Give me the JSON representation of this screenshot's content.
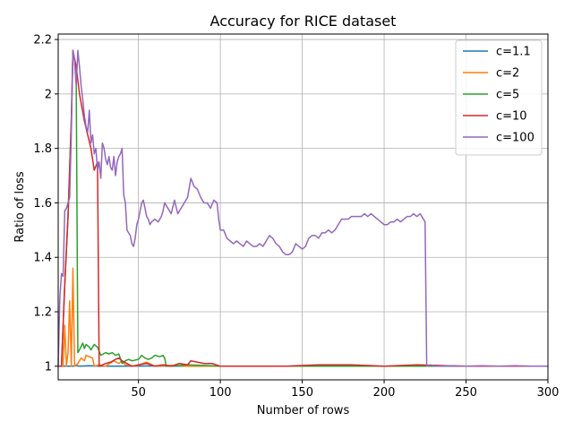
{
  "chart_data": {
    "type": "line",
    "title": "Accuracy for RICE dataset",
    "xlabel": "Number of rows",
    "ylabel": "Ratio of loss",
    "xlim": [
      1,
      300
    ],
    "ylim": [
      0.95,
      2.22
    ],
    "xticks": [
      50,
      100,
      150,
      200,
      250,
      300
    ],
    "yticks": [
      1.0,
      1.2,
      1.4,
      1.6,
      1.8,
      2.0,
      2.2
    ],
    "grid": true,
    "legend_position": "top-right",
    "series": [
      {
        "name": "c=1.1",
        "color": "#1f77b4",
        "points": [
          [
            1,
            1.0
          ],
          [
            10,
            1.0
          ],
          [
            12,
            1.003
          ],
          [
            14,
            1.0
          ],
          [
            20,
            1.002
          ],
          [
            26,
            1.0
          ],
          [
            40,
            1.0
          ],
          [
            60,
            1.001
          ],
          [
            80,
            1.0
          ],
          [
            100,
            1.0
          ],
          [
            150,
            1.0
          ],
          [
            200,
            1.0
          ],
          [
            250,
            1.0
          ],
          [
            300,
            1.0
          ]
        ]
      },
      {
        "name": "c=2",
        "color": "#ff7f0e",
        "points": [
          [
            1,
            1.0
          ],
          [
            4,
            1.0
          ],
          [
            5,
            1.15
          ],
          [
            6,
            1.0
          ],
          [
            7,
            1.05
          ],
          [
            8,
            1.24
          ],
          [
            9,
            1.0
          ],
          [
            10,
            1.36
          ],
          [
            11,
            1.0
          ],
          [
            13,
            1.01
          ],
          [
            15,
            1.03
          ],
          [
            17,
            1.02
          ],
          [
            18,
            1.04
          ],
          [
            20,
            1.035
          ],
          [
            22,
            1.03
          ],
          [
            23,
            1.0
          ],
          [
            26,
            1.005
          ],
          [
            30,
            1.0
          ],
          [
            35,
            1.02
          ],
          [
            38,
            1.01
          ],
          [
            40,
            1.02
          ],
          [
            42,
            1.005
          ],
          [
            48,
            1.0
          ],
          [
            55,
            1.015
          ],
          [
            60,
            1.0
          ],
          [
            70,
            1.003
          ],
          [
            80,
            1.0
          ],
          [
            100,
            1.0
          ],
          [
            150,
            1.0
          ],
          [
            200,
            1.0
          ],
          [
            250,
            1.0
          ],
          [
            300,
            1.0
          ]
        ]
      },
      {
        "name": "c=5",
        "color": "#2ca02c",
        "points": [
          [
            1,
            1.0
          ],
          [
            3,
            1.0
          ],
          [
            5,
            1.3
          ],
          [
            7,
            1.55
          ],
          [
            9,
            1.9
          ],
          [
            10,
            2.16
          ],
          [
            11,
            2.12
          ],
          [
            12,
            2.05
          ],
          [
            13,
            1.05
          ],
          [
            14,
            1.06
          ],
          [
            16,
            1.085
          ],
          [
            17,
            1.065
          ],
          [
            18,
            1.08
          ],
          [
            20,
            1.07
          ],
          [
            21,
            1.06
          ],
          [
            23,
            1.08
          ],
          [
            25,
            1.07
          ],
          [
            27,
            1.04
          ],
          [
            30,
            1.05
          ],
          [
            32,
            1.045
          ],
          [
            34,
            1.05
          ],
          [
            36,
            1.04
          ],
          [
            38,
            1.045
          ],
          [
            40,
            1.01
          ],
          [
            42,
            1.02
          ],
          [
            44,
            1.025
          ],
          [
            46,
            1.02
          ],
          [
            50,
            1.025
          ],
          [
            52,
            1.04
          ],
          [
            54,
            1.03
          ],
          [
            56,
            1.025
          ],
          [
            58,
            1.03
          ],
          [
            60,
            1.04
          ],
          [
            63,
            1.035
          ],
          [
            65,
            1.04
          ],
          [
            66,
            1.03
          ],
          [
            67,
            1.0
          ],
          [
            70,
            1.0
          ],
          [
            80,
            1.005
          ],
          [
            100,
            1.0
          ],
          [
            150,
            1.0
          ],
          [
            200,
            1.0
          ],
          [
            250,
            1.0
          ],
          [
            300,
            1.0
          ]
        ]
      },
      {
        "name": "c=10",
        "color": "#d62728",
        "points": [
          [
            1,
            1.0
          ],
          [
            3,
            1.0
          ],
          [
            5,
            1.3
          ],
          [
            7,
            1.55
          ],
          [
            9,
            1.9
          ],
          [
            10,
            2.16
          ],
          [
            12,
            2.1
          ],
          [
            14,
            2.0
          ],
          [
            17,
            1.9
          ],
          [
            19,
            1.85
          ],
          [
            21,
            1.8
          ],
          [
            23,
            1.72
          ],
          [
            25,
            1.75
          ],
          [
            26,
            1.0
          ],
          [
            30,
            1.01
          ],
          [
            33,
            1.015
          ],
          [
            36,
            1.025
          ],
          [
            38,
            1.03
          ],
          [
            40,
            1.02
          ],
          [
            43,
            1.01
          ],
          [
            46,
            1.0
          ],
          [
            50,
            1.005
          ],
          [
            55,
            1.01
          ],
          [
            60,
            1.0
          ],
          [
            65,
            1.005
          ],
          [
            70,
            1.0
          ],
          [
            75,
            1.01
          ],
          [
            80,
            1.005
          ],
          [
            82,
            1.02
          ],
          [
            86,
            1.015
          ],
          [
            90,
            1.01
          ],
          [
            95,
            1.01
          ],
          [
            100,
            1.0
          ],
          [
            120,
            1.0
          ],
          [
            140,
            1.0
          ],
          [
            160,
            1.005
          ],
          [
            180,
            1.005
          ],
          [
            200,
            1.0
          ],
          [
            220,
            1.005
          ],
          [
            250,
            1.0
          ],
          [
            300,
            1.0
          ]
        ]
      },
      {
        "name": "c=100",
        "color": "#9467bd",
        "points": [
          [
            1,
            1.0
          ],
          [
            2,
            1.25
          ],
          [
            3,
            1.34
          ],
          [
            4,
            1.33
          ],
          [
            5,
            1.57
          ],
          [
            6,
            1.58
          ],
          [
            7,
            1.6
          ],
          [
            8,
            1.62
          ],
          [
            9,
            1.85
          ],
          [
            10,
            2.16
          ],
          [
            11,
            2.12
          ],
          [
            12,
            2.03
          ],
          [
            13,
            2.16
          ],
          [
            14,
            2.1
          ],
          [
            15,
            2.03
          ],
          [
            16,
            1.98
          ],
          [
            17,
            1.92
          ],
          [
            18,
            1.88
          ],
          [
            19,
            1.86
          ],
          [
            20,
            1.94
          ],
          [
            21,
            1.82
          ],
          [
            22,
            1.85
          ],
          [
            23,
            1.78
          ],
          [
            24,
            1.8
          ],
          [
            25,
            1.72
          ],
          [
            26,
            1.75
          ],
          [
            27,
            1.69
          ],
          [
            28,
            1.82
          ],
          [
            29,
            1.8
          ],
          [
            30,
            1.76
          ],
          [
            31,
            1.74
          ],
          [
            32,
            1.77
          ],
          [
            33,
            1.73
          ],
          [
            34,
            1.72
          ],
          [
            35,
            1.77
          ],
          [
            36,
            1.7
          ],
          [
            37,
            1.75
          ],
          [
            38,
            1.77
          ],
          [
            39,
            1.78
          ],
          [
            40,
            1.8
          ],
          [
            41,
            1.63
          ],
          [
            42,
            1.6
          ],
          [
            43,
            1.5
          ],
          [
            44,
            1.49
          ],
          [
            45,
            1.48
          ],
          [
            46,
            1.45
          ],
          [
            47,
            1.44
          ],
          [
            48,
            1.47
          ],
          [
            49,
            1.52
          ],
          [
            50,
            1.54
          ],
          [
            51,
            1.57
          ],
          [
            52,
            1.6
          ],
          [
            53,
            1.61
          ],
          [
            54,
            1.58
          ],
          [
            55,
            1.55
          ],
          [
            56,
            1.54
          ],
          [
            57,
            1.52
          ],
          [
            58,
            1.53
          ],
          [
            60,
            1.54
          ],
          [
            62,
            1.53
          ],
          [
            64,
            1.55
          ],
          [
            65,
            1.57
          ],
          [
            66,
            1.6
          ],
          [
            68,
            1.58
          ],
          [
            70,
            1.56
          ],
          [
            72,
            1.61
          ],
          [
            74,
            1.56
          ],
          [
            76,
            1.58
          ],
          [
            78,
            1.6
          ],
          [
            80,
            1.62
          ],
          [
            82,
            1.69
          ],
          [
            84,
            1.66
          ],
          [
            86,
            1.65
          ],
          [
            88,
            1.62
          ],
          [
            90,
            1.6
          ],
          [
            92,
            1.6
          ],
          [
            94,
            1.58
          ],
          [
            96,
            1.61
          ],
          [
            98,
            1.6
          ],
          [
            99,
            1.54
          ],
          [
            100,
            1.5
          ],
          [
            102,
            1.5
          ],
          [
            104,
            1.47
          ],
          [
            106,
            1.46
          ],
          [
            108,
            1.45
          ],
          [
            110,
            1.46
          ],
          [
            112,
            1.45
          ],
          [
            114,
            1.44
          ],
          [
            116,
            1.46
          ],
          [
            118,
            1.45
          ],
          [
            120,
            1.44
          ],
          [
            122,
            1.44
          ],
          [
            124,
            1.45
          ],
          [
            126,
            1.44
          ],
          [
            128,
            1.46
          ],
          [
            130,
            1.48
          ],
          [
            132,
            1.47
          ],
          [
            134,
            1.45
          ],
          [
            136,
            1.44
          ],
          [
            138,
            1.42
          ],
          [
            140,
            1.41
          ],
          [
            142,
            1.41
          ],
          [
            144,
            1.42
          ],
          [
            146,
            1.45
          ],
          [
            148,
            1.44
          ],
          [
            150,
            1.43
          ],
          [
            152,
            1.44
          ],
          [
            154,
            1.47
          ],
          [
            156,
            1.48
          ],
          [
            158,
            1.48
          ],
          [
            160,
            1.47
          ],
          [
            162,
            1.49
          ],
          [
            164,
            1.49
          ],
          [
            166,
            1.5
          ],
          [
            168,
            1.49
          ],
          [
            170,
            1.5
          ],
          [
            172,
            1.52
          ],
          [
            174,
            1.54
          ],
          [
            176,
            1.54
          ],
          [
            178,
            1.54
          ],
          [
            180,
            1.55
          ],
          [
            182,
            1.55
          ],
          [
            184,
            1.55
          ],
          [
            186,
            1.55
          ],
          [
            188,
            1.56
          ],
          [
            190,
            1.55
          ],
          [
            192,
            1.56
          ],
          [
            194,
            1.55
          ],
          [
            196,
            1.54
          ],
          [
            198,
            1.53
          ],
          [
            200,
            1.52
          ],
          [
            202,
            1.52
          ],
          [
            204,
            1.53
          ],
          [
            206,
            1.53
          ],
          [
            208,
            1.54
          ],
          [
            210,
            1.53
          ],
          [
            212,
            1.54
          ],
          [
            214,
            1.55
          ],
          [
            216,
            1.55
          ],
          [
            218,
            1.56
          ],
          [
            220,
            1.55
          ],
          [
            222,
            1.56
          ],
          [
            224,
            1.54
          ],
          [
            225,
            1.53
          ],
          [
            226,
            1.0
          ],
          [
            228,
            1.005
          ],
          [
            232,
            1.0
          ],
          [
            240,
            1.002
          ],
          [
            250,
            1.0
          ],
          [
            260,
            1.002
          ],
          [
            270,
            1.0
          ],
          [
            280,
            1.002
          ],
          [
            290,
            1.0
          ],
          [
            300,
            1.0
          ]
        ]
      }
    ]
  }
}
